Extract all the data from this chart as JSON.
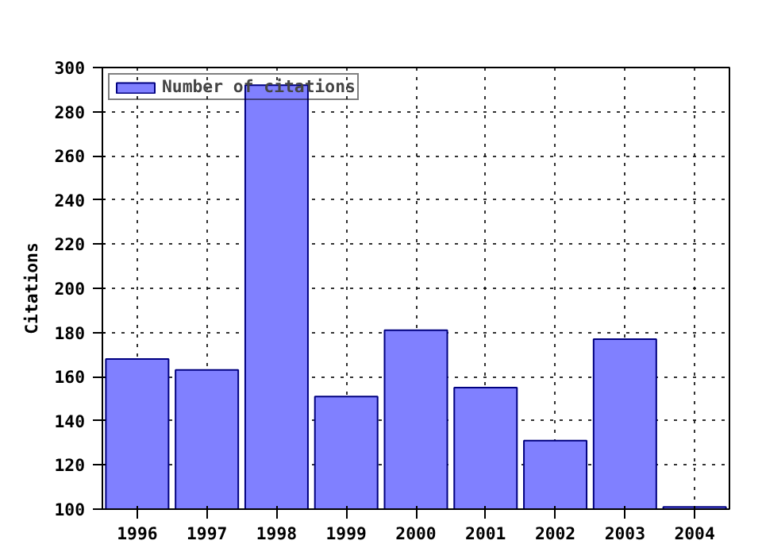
{
  "chart_data": {
    "type": "bar",
    "ylabel": "Citations",
    "x": [
      1996,
      1997,
      1998,
      1999,
      2000,
      2001,
      2002,
      2003,
      2004
    ],
    "series": [
      {
        "name": "Number of citations",
        "color": "#8080ff",
        "values": [
          168,
          163,
          292,
          151,
          181,
          155,
          131,
          177,
          101
        ]
      }
    ],
    "xlim": [
      1995.5,
      2004.5
    ],
    "xticks": [
      1996,
      1997,
      1998,
      1999,
      2000,
      2001,
      2002,
      2003,
      2004
    ],
    "ylim": [
      100,
      300
    ],
    "yticks": [
      100,
      120,
      140,
      160,
      180,
      200,
      220,
      240,
      260,
      280,
      300
    ],
    "grid": true,
    "legend": "top left"
  }
}
